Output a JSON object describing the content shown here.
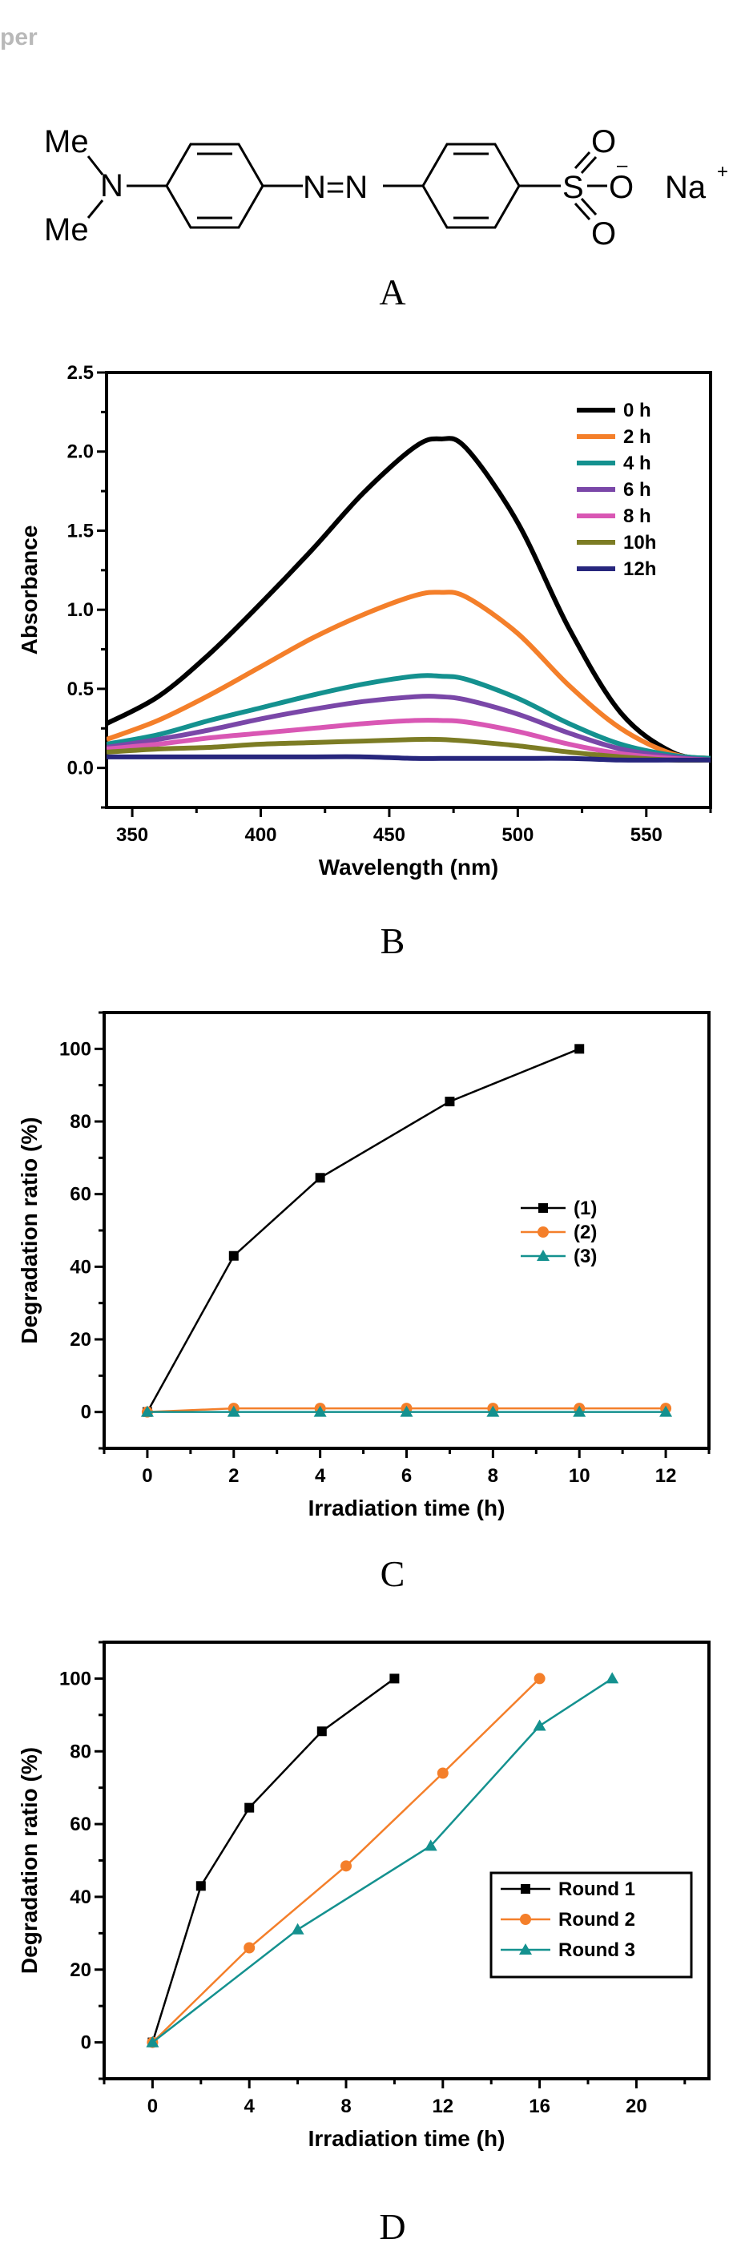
{
  "header": {
    "fragment": "per"
  },
  "molecule": {
    "label": "A",
    "me_top": "Me",
    "me_bottom": "Me",
    "n_amine": "N",
    "azo": "N=N",
    "sulfur": "S",
    "oxygen": "O",
    "minus": "–",
    "sodium": "Na",
    "plus": "+"
  },
  "chart_data": [
    {
      "panel": "B",
      "type": "line",
      "xlabel": "Wavelength (nm)",
      "ylabel": "Absorbance",
      "xlim": [
        340,
        575
      ],
      "ylim": [
        -0.25,
        2.5
      ],
      "xticks": [
        350,
        400,
        450,
        500,
        550
      ],
      "yticks": [
        0.0,
        0.5,
        1.0,
        1.5,
        2.0,
        2.5
      ],
      "ytick_labels": [
        "0.0",
        "0.5",
        "1.0",
        "1.5",
        "2.0",
        "2.5"
      ],
      "legend_position": "top-right",
      "x": [
        340,
        360,
        380,
        400,
        420,
        440,
        460,
        470,
        480,
        500,
        520,
        540,
        560,
        575
      ],
      "series": [
        {
          "name": "0 h",
          "color": "#000000",
          "values": [
            0.28,
            0.45,
            0.72,
            1.04,
            1.38,
            1.74,
            2.03,
            2.08,
            2.02,
            1.55,
            0.88,
            0.35,
            0.1,
            0.06
          ]
        },
        {
          "name": "2 h",
          "color": "#f47f2a",
          "values": [
            0.18,
            0.3,
            0.46,
            0.64,
            0.82,
            0.97,
            1.09,
            1.11,
            1.08,
            0.85,
            0.52,
            0.25,
            0.09,
            0.06
          ]
        },
        {
          "name": "4 h",
          "color": "#14918f",
          "values": [
            0.15,
            0.21,
            0.3,
            0.38,
            0.46,
            0.53,
            0.58,
            0.58,
            0.56,
            0.44,
            0.28,
            0.15,
            0.08,
            0.06
          ]
        },
        {
          "name": "6 h",
          "color": "#7a47a8",
          "values": [
            0.13,
            0.18,
            0.24,
            0.31,
            0.37,
            0.42,
            0.45,
            0.45,
            0.43,
            0.34,
            0.22,
            0.12,
            0.07,
            0.05
          ]
        },
        {
          "name": "8 h",
          "color": "#d957b4",
          "values": [
            0.12,
            0.15,
            0.19,
            0.22,
            0.25,
            0.28,
            0.3,
            0.3,
            0.29,
            0.23,
            0.15,
            0.09,
            0.06,
            0.05
          ]
        },
        {
          "name": "10h",
          "color": "#7c7c24",
          "values": [
            0.1,
            0.12,
            0.13,
            0.15,
            0.16,
            0.17,
            0.18,
            0.18,
            0.17,
            0.14,
            0.1,
            0.07,
            0.05,
            0.05
          ]
        },
        {
          "name": "12h",
          "color": "#27267d",
          "values": [
            0.07,
            0.07,
            0.07,
            0.07,
            0.07,
            0.07,
            0.06,
            0.06,
            0.06,
            0.06,
            0.06,
            0.05,
            0.05,
            0.05
          ]
        }
      ]
    },
    {
      "panel": "C",
      "type": "line",
      "xlabel": "Irradiation time (h)",
      "ylabel": "Degradation ratio (%)",
      "xlim": [
        -1,
        13
      ],
      "ylim": [
        -10,
        110
      ],
      "xticks": [
        0,
        2,
        4,
        6,
        8,
        10,
        12
      ],
      "yticks": [
        0,
        20,
        40,
        60,
        80,
        100
      ],
      "legend_position": "center-right",
      "series": [
        {
          "name": "(1)",
          "color": "#000000",
          "marker": "square",
          "x": [
            0,
            2,
            4,
            7,
            10
          ],
          "values": [
            0,
            43,
            64.5,
            85.5,
            100
          ]
        },
        {
          "name": "(2)",
          "color": "#f47f2a",
          "marker": "circle",
          "x": [
            0,
            2,
            4,
            6,
            8,
            10,
            12
          ],
          "values": [
            0,
            1,
            1,
            1,
            1,
            1,
            1
          ]
        },
        {
          "name": "(3)",
          "color": "#14918f",
          "marker": "triangle",
          "x": [
            0,
            2,
            4,
            6,
            8,
            10,
            12
          ],
          "values": [
            0,
            0,
            0,
            0,
            0,
            0,
            0
          ]
        }
      ]
    },
    {
      "panel": "D",
      "type": "line",
      "xlabel": "Irradiation time (h)",
      "ylabel": "Degradation ratio (%)",
      "xlim": [
        -2,
        23
      ],
      "ylim": [
        -10,
        110
      ],
      "xticks": [
        0,
        4,
        8,
        12,
        16,
        20
      ],
      "yticks": [
        0,
        20,
        40,
        60,
        80,
        100
      ],
      "legend_position": "bottom-right",
      "series": [
        {
          "name": "Round 1",
          "color": "#000000",
          "marker": "square",
          "x": [
            0,
            2,
            4,
            7,
            10
          ],
          "values": [
            0,
            43,
            64.5,
            85.5,
            100
          ]
        },
        {
          "name": "Round 2",
          "color": "#f47f2a",
          "marker": "circle",
          "x": [
            0,
            4,
            8,
            12,
            16
          ],
          "values": [
            0,
            26,
            48.5,
            74,
            100
          ]
        },
        {
          "name": "Round 3",
          "color": "#14918f",
          "marker": "triangle",
          "x": [
            0,
            6,
            11.5,
            16,
            19
          ],
          "values": [
            0,
            31,
            54,
            87,
            100
          ]
        }
      ]
    }
  ]
}
